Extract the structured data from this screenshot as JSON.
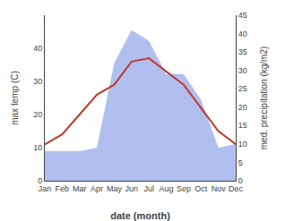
{
  "chart_data": {
    "type": "line",
    "xlabel": "date (month)",
    "ylabel": "max temp (C)",
    "y2label": "med. precipitation (kg/m2)",
    "categories": [
      "Jan",
      "Feb",
      "Mar",
      "Apr",
      "May",
      "Jun",
      "Jul",
      "Aug",
      "Sep",
      "Oct",
      "Nov",
      "Dec"
    ],
    "series": [
      {
        "type": "area",
        "axis": "y2",
        "color": "#b0bff0",
        "values": [
          8,
          8,
          8,
          9,
          32,
          41,
          38,
          29,
          29,
          22,
          9,
          10
        ]
      },
      {
        "type": "line",
        "color": "#c0392b",
        "values": [
          11,
          14,
          20,
          26,
          29,
          36,
          37,
          33,
          29,
          22,
          15,
          11
        ]
      }
    ],
    "ylim": [
      0,
      50
    ],
    "yticks": [
      0,
      10,
      20,
      30,
      40
    ],
    "y2lim": [
      0,
      45
    ],
    "y2ticks": [
      0,
      5,
      10,
      15,
      20,
      25,
      30,
      35,
      40,
      45
    ],
    "grid": false
  }
}
